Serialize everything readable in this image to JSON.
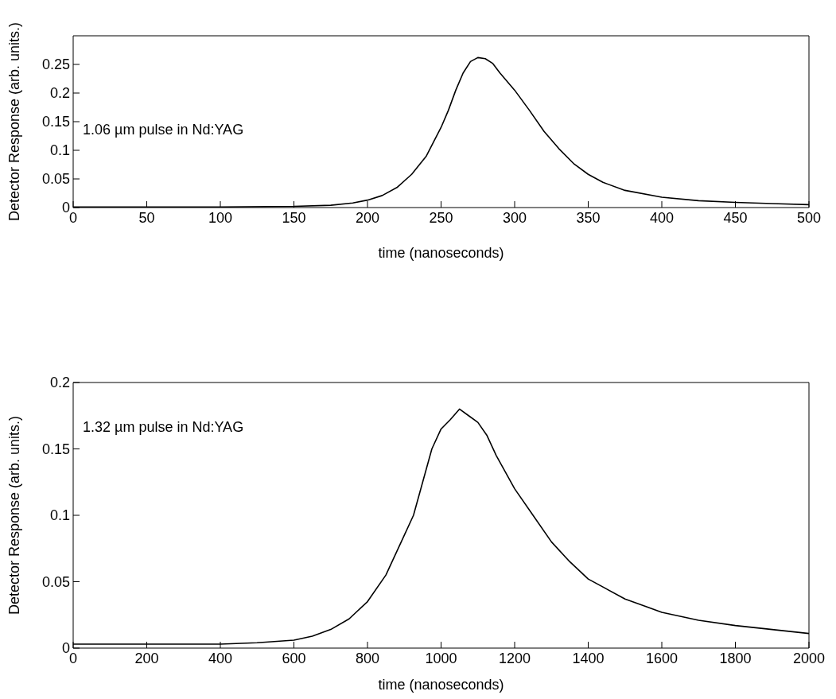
{
  "chart_data": [
    {
      "type": "line",
      "xlabel": "time (nanoseconds)",
      "ylabel": "Detector Response (arb. units.)",
      "annotations": [
        "1.06 µm pulse in Nd:YAG"
      ],
      "xlim": [
        0,
        500
      ],
      "xticks": [
        0,
        50,
        100,
        150,
        200,
        250,
        300,
        350,
        400,
        450,
        500
      ],
      "ylim": [
        0,
        0.3
      ],
      "yticks": [
        0,
        0.05,
        0.1,
        0.15,
        0.2,
        0.25
      ],
      "grid": false,
      "legend": false,
      "series": [
        {
          "color": "#000000",
          "x": [
            0,
            50,
            100,
            150,
            175,
            190,
            200,
            210,
            220,
            230,
            240,
            250,
            255,
            260,
            265,
            270,
            275,
            280,
            285,
            290,
            300,
            310,
            320,
            330,
            340,
            350,
            360,
            375,
            400,
            425,
            450,
            475,
            500
          ],
          "values": [
            0.001,
            0.001,
            0.001,
            0.002,
            0.004,
            0.008,
            0.013,
            0.021,
            0.035,
            0.058,
            0.09,
            0.14,
            0.17,
            0.205,
            0.235,
            0.255,
            0.262,
            0.26,
            0.252,
            0.235,
            0.205,
            0.17,
            0.133,
            0.103,
            0.077,
            0.058,
            0.044,
            0.03,
            0.018,
            0.012,
            0.009,
            0.007,
            0.005
          ]
        }
      ]
    },
    {
      "type": "line",
      "xlabel": "time (nanoseconds)",
      "ylabel": "Detector Response (arb. units.)",
      "annotations": [
        "1.32 µm pulse in Nd:YAG"
      ],
      "xlim": [
        0,
        2000
      ],
      "xticks": [
        0,
        200,
        400,
        600,
        800,
        1000,
        1200,
        1400,
        1600,
        1800,
        2000
      ],
      "ylim": [
        0,
        0.2
      ],
      "yticks": [
        0,
        0.05,
        0.1,
        0.15,
        0.2
      ],
      "grid": false,
      "legend": false,
      "series": [
        {
          "color": "#000000",
          "x": [
            0,
            200,
            400,
            500,
            600,
            650,
            700,
            750,
            800,
            850,
            900,
            925,
            950,
            975,
            1000,
            1025,
            1050,
            1075,
            1100,
            1125,
            1150,
            1200,
            1250,
            1300,
            1350,
            1400,
            1500,
            1600,
            1700,
            1800,
            1900,
            2000
          ],
          "values": [
            0.003,
            0.003,
            0.003,
            0.004,
            0.006,
            0.009,
            0.014,
            0.022,
            0.035,
            0.055,
            0.085,
            0.1,
            0.125,
            0.15,
            0.165,
            0.172,
            0.18,
            0.175,
            0.17,
            0.16,
            0.145,
            0.12,
            0.1,
            0.08,
            0.065,
            0.052,
            0.037,
            0.027,
            0.021,
            0.017,
            0.014,
            0.011
          ]
        }
      ]
    }
  ]
}
